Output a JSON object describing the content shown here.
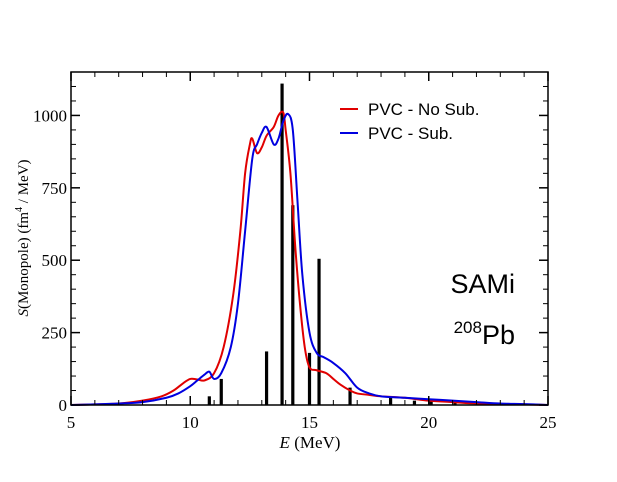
{
  "chart_data": {
    "type": "line",
    "xlabel": {
      "italic": "E",
      "rest": " (MeV)"
    },
    "ylabel": {
      "italic": "S",
      "rest": "(Monopole) (fm",
      "sup": "4",
      "tail": " / MeV)"
    },
    "xlim": [
      5,
      25
    ],
    "ylim": [
      0,
      1150
    ],
    "x_ticks": [
      5,
      10,
      15,
      20,
      25
    ],
    "y_ticks": [
      0,
      250,
      500,
      750,
      1000
    ],
    "x_tick_labels": [
      "5",
      "10",
      "15",
      "20",
      "25"
    ],
    "y_tick_labels": [
      "0",
      "250",
      "500",
      "750",
      "1000"
    ],
    "grid": false,
    "legend_position": "top-right",
    "annotation": {
      "line1": "SAMi",
      "sup": "208",
      "element": "Pb"
    },
    "colors": {
      "no_sub": "#e00000",
      "sub": "#0000e0",
      "bars": "#000000"
    },
    "series": [
      {
        "name": "PVC - No Sub.",
        "style": "line",
        "x": [
          5.0,
          6.0,
          7.0,
          8.0,
          8.8,
          9.3,
          9.7,
          10.0,
          10.3,
          10.6,
          11.0,
          11.4,
          11.8,
          12.1,
          12.3,
          12.5,
          12.6,
          12.8,
          13.0,
          13.2,
          13.5,
          13.7,
          13.9,
          14.0,
          14.2,
          14.4,
          14.6,
          14.8,
          15.0,
          15.3,
          15.7,
          16.0,
          16.3,
          16.7,
          17.0,
          17.5,
          18.0,
          19.0,
          20.0,
          21.0,
          22.0,
          23.0,
          24.0,
          25.0
        ],
        "values": [
          0,
          2,
          5,
          15,
          30,
          50,
          75,
          90,
          88,
          85,
          110,
          200,
          380,
          600,
          800,
          900,
          920,
          870,
          890,
          930,
          960,
          1000,
          1010,
          950,
          800,
          550,
          350,
          200,
          130,
          120,
          110,
          90,
          70,
          50,
          40,
          35,
          30,
          25,
          15,
          10,
          5,
          3,
          2,
          0
        ]
      },
      {
        "name": "PVC - Sub.",
        "style": "line",
        "x": [
          5.0,
          6.0,
          7.0,
          8.0,
          9.0,
          9.5,
          10.0,
          10.3,
          10.6,
          10.8,
          11.0,
          11.3,
          11.7,
          12.0,
          12.3,
          12.6,
          12.8,
          13.0,
          13.2,
          13.5,
          13.7,
          13.9,
          14.1,
          14.3,
          14.5,
          14.7,
          15.0,
          15.3,
          15.6,
          16.0,
          16.5,
          17.0,
          17.5,
          18.0,
          19.0,
          20.0,
          21.0,
          22.0,
          23.0,
          24.0,
          25.0
        ],
        "values": [
          0,
          2,
          5,
          10,
          25,
          40,
          65,
          85,
          105,
          115,
          90,
          110,
          200,
          350,
          600,
          850,
          900,
          940,
          960,
          900,
          920,
          980,
          1005,
          950,
          700,
          450,
          250,
          180,
          165,
          145,
          110,
          60,
          40,
          30,
          25,
          20,
          15,
          10,
          5,
          3,
          0
        ]
      },
      {
        "name": "",
        "style": "bar",
        "x": [
          10.8,
          11.3,
          13.2,
          13.85,
          14.3,
          15.0,
          15.4,
          16.7,
          18.4,
          19.4,
          20.1,
          21.1
        ],
        "values": [
          30,
          90,
          185,
          1110,
          690,
          180,
          505,
          60,
          30,
          15,
          15,
          10
        ]
      }
    ]
  }
}
